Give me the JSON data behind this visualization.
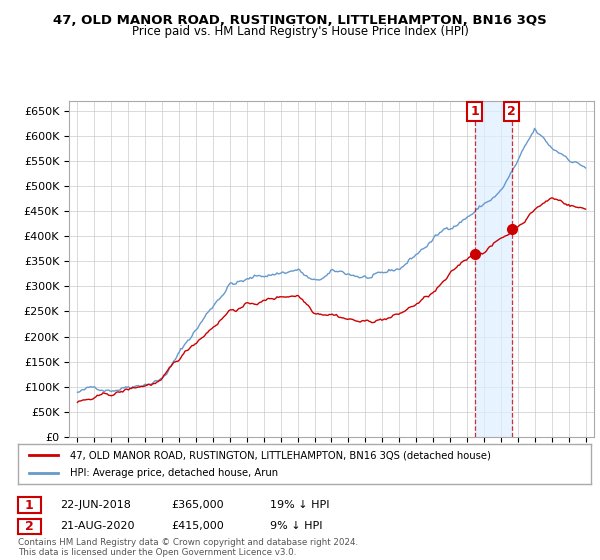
{
  "title": "47, OLD MANOR ROAD, RUSTINGTON, LITTLEHAMPTON, BN16 3QS",
  "subtitle": "Price paid vs. HM Land Registry's House Price Index (HPI)",
  "ylabel_ticks": [
    "£0",
    "£50K",
    "£100K",
    "£150K",
    "£200K",
    "£250K",
    "£300K",
    "£350K",
    "£400K",
    "£450K",
    "£500K",
    "£550K",
    "£600K",
    "£650K"
  ],
  "ytick_values": [
    0,
    50000,
    100000,
    150000,
    200000,
    250000,
    300000,
    350000,
    400000,
    450000,
    500000,
    550000,
    600000,
    650000
  ],
  "xlim_start": 1994.5,
  "xlim_end": 2025.5,
  "ylim_min": 0,
  "ylim_max": 670000,
  "sale1_date": 2018.47,
  "sale1_price": 365000,
  "sale1_label": "1",
  "sale2_date": 2020.64,
  "sale2_price": 415000,
  "sale2_label": "2",
  "line_color_red": "#cc0000",
  "line_color_blue": "#6699cc",
  "shade_color": "#ddeeff",
  "annotation_box_color": "#cc0000",
  "grid_color": "#cccccc",
  "background_color": "#ffffff",
  "legend_label_red": "47, OLD MANOR ROAD, RUSTINGTON, LITTLEHAMPTON, BN16 3QS (detached house)",
  "legend_label_blue": "HPI: Average price, detached house, Arun",
  "note1_label": "1",
  "note1_date": "22-JUN-2018",
  "note1_price": "£365,000",
  "note1_hpi": "19% ↓ HPI",
  "note2_label": "2",
  "note2_date": "21-AUG-2020",
  "note2_price": "£415,000",
  "note2_hpi": "9% ↓ HPI",
  "footer": "Contains HM Land Registry data © Crown copyright and database right 2024.\nThis data is licensed under the Open Government Licence v3.0."
}
